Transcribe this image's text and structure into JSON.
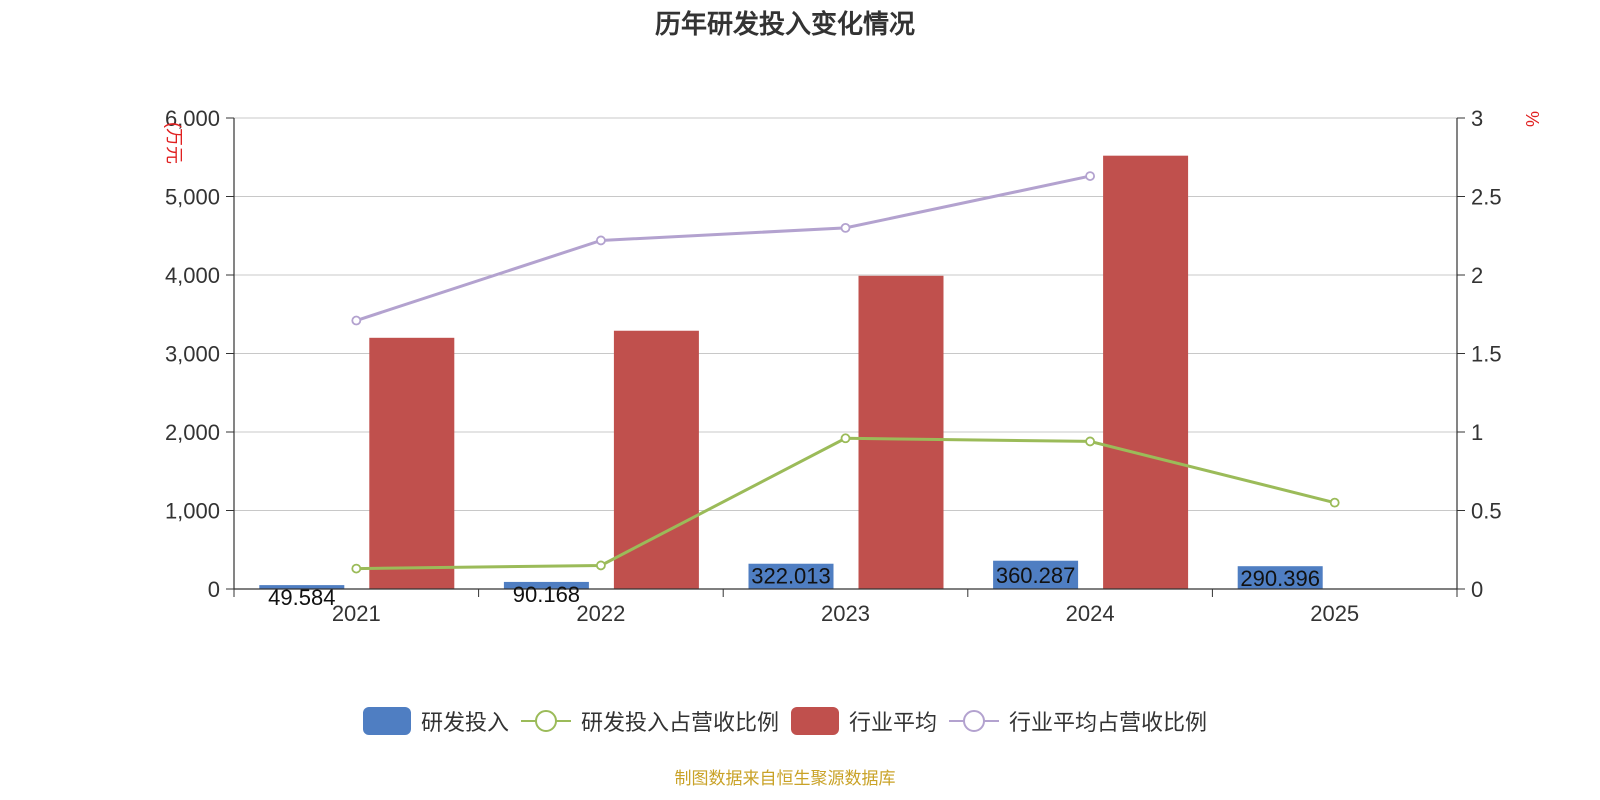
{
  "chart_data": {
    "type": "bar",
    "title": "历年研发投入变化情况",
    "categories": [
      "2021",
      "2022",
      "2023",
      "2024",
      "2025"
    ],
    "y_left": {
      "label": "(万元",
      "ticks": [
        "0",
        "1,000",
        "2,000",
        "3,000",
        "4,000",
        "5,000",
        "6,000"
      ],
      "range": [
        0,
        6000
      ]
    },
    "y_right": {
      "label": "%",
      "ticks": [
        "0",
        "0.5",
        "1",
        "1.5",
        "2",
        "2.5",
        "3"
      ],
      "range": [
        0,
        3
      ]
    },
    "series": [
      {
        "name": "研发投入",
        "type": "bar",
        "axis": "left",
        "color": "#4f7ec2",
        "values": [
          49.584,
          90.168,
          322.013,
          360.287,
          290.396
        ],
        "labels": [
          "49.584",
          "90.168",
          "322.013",
          "360.287",
          "290.396"
        ]
      },
      {
        "name": "研发投入占营收比例",
        "type": "line",
        "axis": "right",
        "color": "#9bbb59",
        "values": [
          0.13,
          0.15,
          0.96,
          0.94,
          0.55
        ]
      },
      {
        "name": "行业平均",
        "type": "bar",
        "axis": "left",
        "color": "#c0504d",
        "values": [
          3200,
          3290,
          3990,
          5520,
          null
        ]
      },
      {
        "name": "行业平均占营收比例",
        "type": "line",
        "axis": "right",
        "color": "#b3a2cf",
        "values": [
          1.71,
          2.22,
          2.3,
          2.63,
          null
        ]
      }
    ],
    "grid": true,
    "legend_position": "bottom"
  },
  "footer": {
    "source": "制图数据来自恒生聚源数据库"
  }
}
